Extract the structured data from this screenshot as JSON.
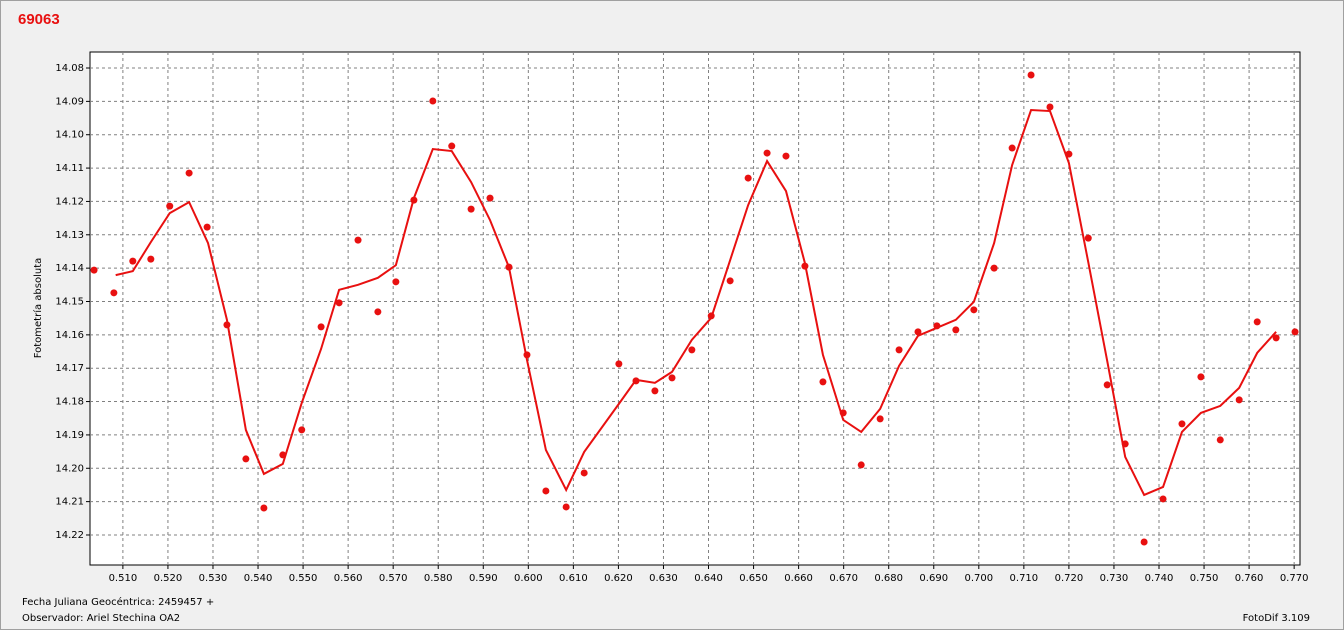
{
  "chart_data": {
    "type": "scatter",
    "title": "69063",
    "ylabel": "Fotometría absoluta",
    "xlabel": "Fecha Juliana Geocéntrica: 2459457 +",
    "xlim": [
      0.5027,
      0.7713
    ],
    "ylim": [
      14.229,
      14.0752
    ],
    "grid": true,
    "xticks": [
      {
        "value": 0.51,
        "label": "0.510"
      },
      {
        "value": 0.52,
        "label": "0.520"
      },
      {
        "value": 0.53,
        "label": "0.530"
      },
      {
        "value": 0.54,
        "label": "0.540"
      },
      {
        "value": 0.55,
        "label": "0.550"
      },
      {
        "value": 0.56,
        "label": "0.560"
      },
      {
        "value": 0.57,
        "label": "0.570"
      },
      {
        "value": 0.58,
        "label": "0.580"
      },
      {
        "value": 0.59,
        "label": "0.590"
      },
      {
        "value": 0.6,
        "label": "0.600"
      },
      {
        "value": 0.61,
        "label": "0.610"
      },
      {
        "value": 0.62,
        "label": "0.620"
      },
      {
        "value": 0.63,
        "label": "0.630"
      },
      {
        "value": 0.64,
        "label": "0.640"
      },
      {
        "value": 0.65,
        "label": "0.650"
      },
      {
        "value": 0.66,
        "label": "0.660"
      },
      {
        "value": 0.67,
        "label": "0.670"
      },
      {
        "value": 0.68,
        "label": "0.680"
      },
      {
        "value": 0.69,
        "label": "0.690"
      },
      {
        "value": 0.7,
        "label": "0.700"
      },
      {
        "value": 0.71,
        "label": "0.710"
      },
      {
        "value": 0.72,
        "label": "0.720"
      },
      {
        "value": 0.73,
        "label": "0.730"
      },
      {
        "value": 0.74,
        "label": "0.740"
      },
      {
        "value": 0.75,
        "label": "0.750"
      },
      {
        "value": 0.76,
        "label": "0.760"
      },
      {
        "value": 0.77,
        "label": "0.770"
      }
    ],
    "yticks": [
      14.08,
      14.09,
      {
        "value": 14.1,
        "label": "14.10"
      },
      14.11,
      14.12,
      14.13,
      14.14,
      14.15,
      14.16,
      14.17,
      14.18,
      14.19,
      {
        "value": 14.2,
        "label": "14.20"
      },
      14.21,
      14.22
    ],
    "series": [
      {
        "mode": "markers",
        "color": "#e81010",
        "x": [
          0.5036,
          0.508,
          0.5122,
          0.5162,
          0.5204,
          0.5247,
          0.5287,
          0.5331,
          0.5373,
          0.5413,
          0.5455,
          0.5497,
          0.554,
          0.558,
          0.5622,
          0.5666,
          0.5706,
          0.5746,
          0.5788,
          0.583,
          0.5873,
          0.5915,
          0.5957,
          0.5997,
          0.6039,
          0.6084,
          0.6124,
          0.6201,
          0.6239,
          0.6281,
          0.6319,
          0.6363,
          0.6406,
          0.6448,
          0.6488,
          0.653,
          0.6572,
          0.6614,
          0.6654,
          0.6699,
          0.6739,
          0.6781,
          0.6823,
          0.6865,
          0.6907,
          0.6949,
          0.6989,
          0.7034,
          0.7074,
          0.7116,
          0.7158,
          0.72,
          0.7243,
          0.7285,
          0.7325,
          0.7367,
          0.7409,
          0.7451,
          0.7493,
          0.7536,
          0.7578,
          0.7618,
          0.766,
          0.7702
        ],
        "values": [
          14.1406,
          14.1474,
          14.1379,
          14.1373,
          14.1214,
          14.1115,
          14.1277,
          14.157,
          14.1972,
          14.2119,
          14.196,
          14.1885,
          14.1576,
          14.1504,
          14.1316,
          14.1531,
          14.1441,
          14.1196,
          14.0899,
          14.1034,
          14.1223,
          14.119,
          14.1397,
          14.166,
          14.2068,
          14.2116,
          14.2014,
          14.1687,
          14.1738,
          14.1768,
          14.1729,
          14.1645,
          14.1543,
          14.1438,
          14.113,
          14.1055,
          14.1064,
          14.1394,
          14.1741,
          14.1834,
          14.199,
          14.1852,
          14.1645,
          14.1591,
          14.1573,
          14.1585,
          14.1525,
          14.14,
          14.104,
          14.0821,
          14.0917,
          14.1058,
          14.131,
          14.175,
          14.1927,
          14.2221,
          14.2092,
          14.1867,
          14.1726,
          14.1915,
          14.1795,
          14.1561,
          14.1609,
          14.1591
        ]
      },
      {
        "mode": "lines",
        "color": "#e81010",
        "x": [
          0.5084,
          0.5122,
          0.5162,
          0.5204,
          0.5247,
          0.5289,
          0.5331,
          0.5373,
          0.5413,
          0.5455,
          0.5497,
          0.554,
          0.558,
          0.5622,
          0.5666,
          0.5706,
          0.5746,
          0.5788,
          0.583,
          0.5873,
          0.5915,
          0.5957,
          0.5997,
          0.6039,
          0.6084,
          0.6124,
          0.6201,
          0.6239,
          0.6281,
          0.6319,
          0.6363,
          0.6406,
          0.6448,
          0.6488,
          0.653,
          0.6572,
          0.6614,
          0.6654,
          0.6699,
          0.6739,
          0.6781,
          0.6823,
          0.6865,
          0.6907,
          0.6949,
          0.6989,
          0.7034,
          0.7074,
          0.7116,
          0.7158,
          0.72,
          0.7243,
          0.7285,
          0.7325,
          0.7367,
          0.7409,
          0.7451,
          0.7493,
          0.7536,
          0.7578,
          0.7618,
          0.766
        ],
        "values": [
          14.1421,
          14.1409,
          14.1322,
          14.1235,
          14.1202,
          14.1325,
          14.1555,
          14.1885,
          14.2017,
          14.1987,
          14.1804,
          14.1642,
          14.1465,
          14.145,
          14.1429,
          14.1391,
          14.119,
          14.1043,
          14.1049,
          14.1142,
          14.1256,
          14.1397,
          14.1675,
          14.1945,
          14.2065,
          14.1951,
          14.1807,
          14.1735,
          14.1744,
          14.1711,
          14.1615,
          14.1549,
          14.1376,
          14.1211,
          14.1079,
          14.1169,
          14.1385,
          14.166,
          14.1855,
          14.1891,
          14.1822,
          14.1693,
          14.1603,
          14.1579,
          14.1555,
          14.1501,
          14.1325,
          14.1091,
          14.0926,
          14.0929,
          14.1085,
          14.1382,
          14.1678,
          14.1966,
          14.208,
          14.2056,
          14.1891,
          14.1834,
          14.1813,
          14.1759,
          14.1654,
          14.1591
        ]
      }
    ]
  },
  "observer": "Observador: Ariel Stechina OA2",
  "software": "FotoDif 3.109"
}
